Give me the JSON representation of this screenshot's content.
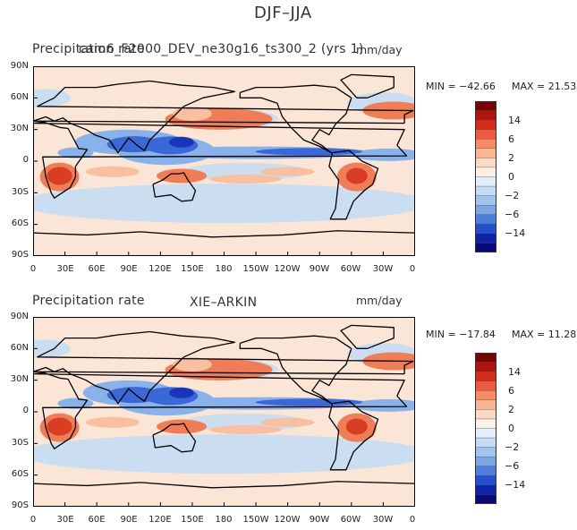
{
  "figure_title": "DJF–JJA",
  "chart_data": [
    {
      "type": "heatmap",
      "map": "global precipitation difference map",
      "title": "Precipitation rate",
      "subtitle": "cam6_F2000_DEV_ne30g16_ts300_2 (yrs 1)",
      "units": "mm/day",
      "min_label": "MIN = −42.66",
      "max_label": "MAX =  21.53",
      "min": -42.66,
      "max": 21.53,
      "lat_ticks": [
        "90N",
        "60N",
        "30N",
        "0",
        "30S",
        "60S",
        "90S"
      ],
      "lon_ticks": [
        "0",
        "30E",
        "60E",
        "90E",
        "120E",
        "150E",
        "180",
        "150W",
        "120W",
        "90W",
        "60W",
        "30W",
        "0"
      ],
      "colorbar_labels": [
        "14",
        "6",
        "2",
        "0",
        "−2",
        "−6",
        "−14"
      ],
      "colorbar_colors": [
        "#7a0403",
        "#b01410",
        "#d62c1c",
        "#ee5a3f",
        "#f68a65",
        "#f9b594",
        "#fbd9c4",
        "#fdf0e6",
        "#e2eefa",
        "#c4dcf4",
        "#a1c4ee",
        "#7aa6e6",
        "#4e7edc",
        "#2450d0",
        "#0e23a8",
        "#080a7a"
      ]
    },
    {
      "type": "heatmap",
      "map": "global precipitation difference map",
      "title": "Precipitation rate",
      "subtitle": "XIE–ARKIN",
      "units": "mm/day",
      "min_label": "MIN = −17.84",
      "max_label": "MAX =  11.28",
      "min": -17.84,
      "max": 11.28,
      "lat_ticks": [
        "90N",
        "60N",
        "30N",
        "0",
        "30S",
        "60S",
        "90S"
      ],
      "lon_ticks": [
        "0",
        "30E",
        "60E",
        "90E",
        "120E",
        "150E",
        "180",
        "150W",
        "120W",
        "90W",
        "60W",
        "30W",
        "0"
      ],
      "colorbar_labels": [
        "14",
        "6",
        "2",
        "0",
        "−2",
        "−6",
        "−14"
      ],
      "colorbar_colors": [
        "#7a0403",
        "#b01410",
        "#d62c1c",
        "#ee5a3f",
        "#f68a65",
        "#f9b594",
        "#fbd9c4",
        "#fdf0e6",
        "#e2eefa",
        "#c4dcf4",
        "#a1c4ee",
        "#7aa6e6",
        "#4e7edc",
        "#2450d0",
        "#0e23a8",
        "#080a7a"
      ]
    }
  ]
}
